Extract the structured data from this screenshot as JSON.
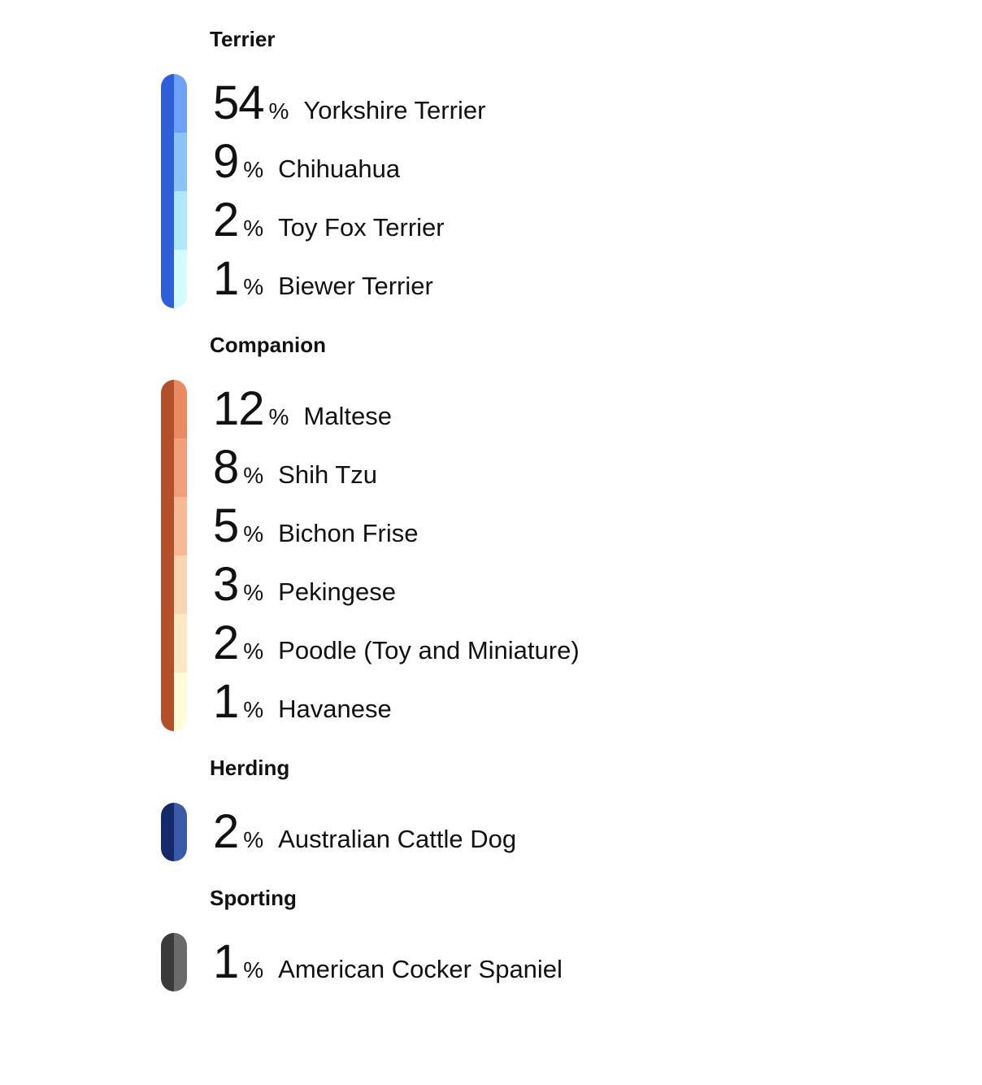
{
  "groups": [
    {
      "title": "Terrier",
      "dark": "#2f5fd8",
      "items": [
        {
          "value": "54",
          "unit": "%",
          "name": "Yorkshire Terrier",
          "color": "#6ea0f5"
        },
        {
          "value": "9",
          "unit": "%",
          "name": "Chihuahua",
          "color": "#8cc4f7"
        },
        {
          "value": "2",
          "unit": "%",
          "name": "Toy Fox Terrier",
          "color": "#aee8fa"
        },
        {
          "value": "1",
          "unit": "%",
          "name": "Biewer Terrier",
          "color": "#d3fbfe"
        }
      ]
    },
    {
      "title": "Companion",
      "dark": "#b1502b",
      "items": [
        {
          "value": "12",
          "unit": "%",
          "name": "Maltese",
          "color": "#e98a62"
        },
        {
          "value": "8",
          "unit": "%",
          "name": "Shih Tzu",
          "color": "#f0a07c"
        },
        {
          "value": "5",
          "unit": "%",
          "name": "Bichon Frise",
          "color": "#f5b996"
        },
        {
          "value": "3",
          "unit": "%",
          "name": "Pekingese",
          "color": "#f8d6b4"
        },
        {
          "value": "2",
          "unit": "%",
          "name": "Poodle (Toy and Miniature)",
          "color": "#fbe8c4"
        },
        {
          "value": "1",
          "unit": "%",
          "name": "Havanese",
          "color": "#fefcd9"
        }
      ]
    },
    {
      "title": "Herding",
      "dark": "#13296a",
      "items": [
        {
          "value": "2",
          "unit": "%",
          "name": "Australian Cattle Dog",
          "color": "#3a5aa8"
        }
      ]
    },
    {
      "title": "Sporting",
      "dark": "#3a3a3a",
      "items": [
        {
          "value": "1",
          "unit": "%",
          "name": "American Cocker Spaniel",
          "color": "#6a6a6a"
        }
      ]
    }
  ]
}
